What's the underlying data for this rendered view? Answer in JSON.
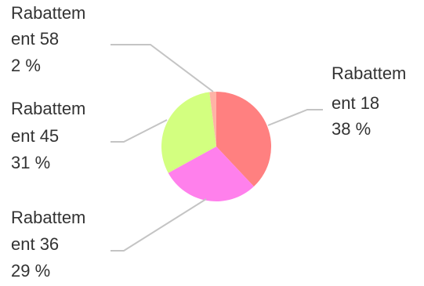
{
  "chart_data": {
    "type": "pie",
    "title": "",
    "slices": [
      {
        "name": "Rabattement 18",
        "label_lines": [
          "Rabattem",
          "ent 18"
        ],
        "percent_label": "38 %",
        "value": 38,
        "color": "#ff8080"
      },
      {
        "name": "Rabattement 36",
        "label_lines": [
          "Rabattem",
          "ent 36"
        ],
        "percent_label": "29 %",
        "value": 29,
        "color": "#ff80ec"
      },
      {
        "name": "Rabattement 45",
        "label_lines": [
          "Rabattem",
          "ent 45"
        ],
        "percent_label": "31 %",
        "value": 31,
        "color": "#d3ff80"
      },
      {
        "name": "Rabattement 58",
        "label_lines": [
          "Rabattem",
          "ent 58"
        ],
        "percent_label": "2 %",
        "value": 2,
        "color": "#ffb3a6"
      }
    ],
    "start_angle_deg": 0,
    "direction": "clockwise",
    "legend": "none"
  }
}
